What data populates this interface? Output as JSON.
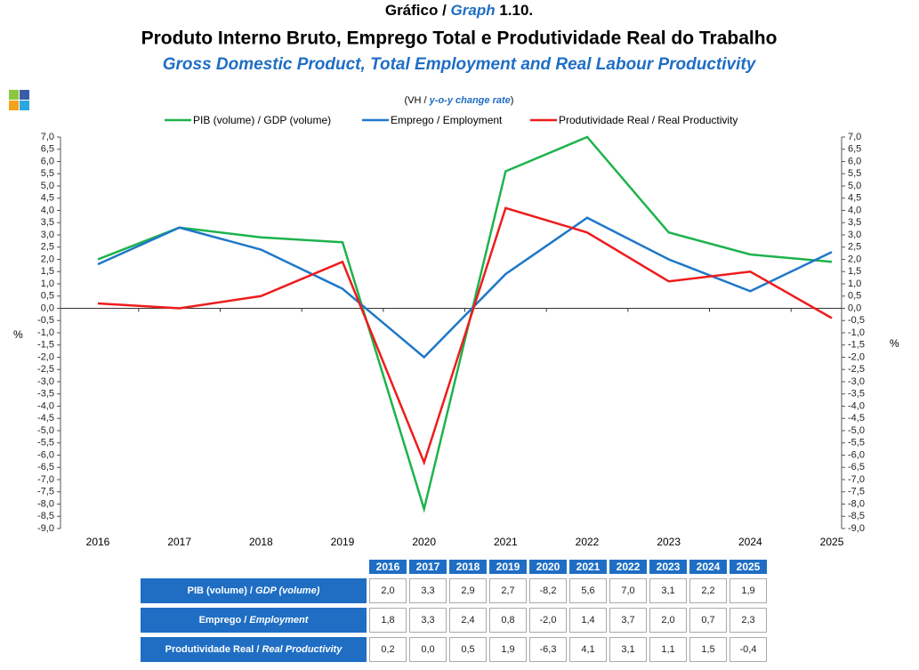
{
  "chart_data": {
    "type": "line",
    "title_pt": "Gráfico / ",
    "title_en": "Graph",
    "title_num": " 1.10.",
    "title": "Produto Interno Bruto, Emprego Total e Produtividade Real do Trabalho",
    "subtitle": "Gross Domestic Product, Total Employment and Real Labour Productivity",
    "unit_pt": "(VH / ",
    "unit_en": "y-o-y change rate",
    "unit_close": ")",
    "ylabel": "%",
    "y2label": "%",
    "categories": [
      "2016",
      "2017",
      "2018",
      "2019",
      "2020",
      "2021",
      "2022",
      "2023",
      "2024",
      "2025"
    ],
    "series": [
      {
        "name": "PIB (volume) / GDP (volume)",
        "color": "#1db34d",
        "values": [
          2.0,
          3.3,
          2.9,
          2.7,
          -8.2,
          5.6,
          7.0,
          3.1,
          2.2,
          1.9
        ]
      },
      {
        "name": "Emprego / Employment",
        "color": "#1f78c8",
        "values": [
          1.8,
          3.3,
          2.4,
          0.8,
          -2.0,
          1.4,
          3.7,
          2.0,
          0.7,
          2.3
        ]
      },
      {
        "name": "Produtividade Real / Real Productivity",
        "color": "#ee1c1c",
        "values": [
          0.2,
          0.0,
          0.5,
          1.9,
          -6.3,
          4.1,
          3.1,
          1.1,
          1.5,
          -0.4
        ]
      }
    ],
    "ylim": [
      -9,
      7
    ],
    "yticks": [
      {
        "value": -9,
        "label": "-9,0"
      },
      {
        "value": -8.5,
        "label": "-8,5"
      },
      {
        "value": -8,
        "label": "-8,0"
      },
      {
        "value": -7.5,
        "label": "-7,5"
      },
      {
        "value": -7,
        "label": "-7,0"
      },
      {
        "value": -6.5,
        "label": "-6,5"
      },
      {
        "value": -6,
        "label": "-6,0"
      },
      {
        "value": -5.5,
        "label": "-5,5"
      },
      {
        "value": -5,
        "label": "-5,0"
      },
      {
        "value": -4.5,
        "label": "-4,5"
      },
      {
        "value": -4,
        "label": "-4,0"
      },
      {
        "value": -3.5,
        "label": "-3,5"
      },
      {
        "value": -3,
        "label": "-3,0"
      },
      {
        "value": -2.5,
        "label": "-2,5"
      },
      {
        "value": -2,
        "label": "-2,0"
      },
      {
        "value": -1.5,
        "label": "-1,5"
      },
      {
        "value": -1,
        "label": "-1,0"
      },
      {
        "value": -0.5,
        "label": "-0,5"
      },
      {
        "value": 0,
        "label": "0,0"
      },
      {
        "value": 0.5,
        "label": "0,5"
      },
      {
        "value": 1,
        "label": "1,0"
      },
      {
        "value": 1.5,
        "label": "1,5"
      },
      {
        "value": 2,
        "label": "2,0"
      },
      {
        "value": 2.5,
        "label": "2,5"
      },
      {
        "value": 3,
        "label": "3,0"
      },
      {
        "value": 3.5,
        "label": "3,5"
      },
      {
        "value": 4,
        "label": "4,0"
      },
      {
        "value": 4.5,
        "label": "4,5"
      },
      {
        "value": 5,
        "label": "5,0"
      },
      {
        "value": 5.5,
        "label": "5,5"
      },
      {
        "value": 6,
        "label": "6,0"
      },
      {
        "value": 6.5,
        "label": "6,5"
      },
      {
        "value": 7,
        "label": "7,0"
      }
    ],
    "y2lim": [
      -9,
      7
    ],
    "y2ticks": [
      {
        "value": -9,
        "label": "-9,0"
      },
      {
        "value": -8.5,
        "label": "-8,5"
      },
      {
        "value": -8,
        "label": "-8,0"
      },
      {
        "value": -7.5,
        "label": "-7,5"
      },
      {
        "value": -7,
        "label": "-7,0"
      },
      {
        "value": -6.5,
        "label": "-6,5"
      },
      {
        "value": -6,
        "label": "-6,0"
      },
      {
        "value": -5.5,
        "label": "-5,5"
      },
      {
        "value": -5,
        "label": "-5,0"
      },
      {
        "value": -4.5,
        "label": "-4,5"
      },
      {
        "value": -4,
        "label": "-4,0"
      },
      {
        "value": -3.5,
        "label": "-3,5"
      },
      {
        "value": -3,
        "label": "-3,0"
      },
      {
        "value": -2.5,
        "label": "-2,5"
      },
      {
        "value": -2,
        "label": "-2,0"
      },
      {
        "value": -1.5,
        "label": "-1,5"
      },
      {
        "value": -1,
        "label": "-1,0"
      },
      {
        "value": -0.5,
        "label": "-0,5"
      },
      {
        "value": 0,
        "label": "0,0"
      },
      {
        "value": 0.5,
        "label": "0,5"
      },
      {
        "value": 1,
        "label": "1,0"
      },
      {
        "value": 1.5,
        "label": "1,5"
      },
      {
        "value": 2,
        "label": "2,0"
      },
      {
        "value": 2.5,
        "label": "2,5"
      },
      {
        "value": 3,
        "label": "3,0"
      },
      {
        "value": 3.5,
        "label": "3,5"
      },
      {
        "value": 4,
        "label": "4,0"
      },
      {
        "value": 4.5,
        "label": "4,5"
      },
      {
        "value": 5,
        "label": "5,0"
      },
      {
        "value": 5.5,
        "label": "5,5"
      },
      {
        "value": 6,
        "label": "6,0"
      },
      {
        "value": 6.5,
        "label": "6,5"
      },
      {
        "value": 7,
        "label": "7,0"
      }
    ],
    "grid": false,
    "legend": "top"
  },
  "table": {
    "columns": [
      "2016",
      "2017",
      "2018",
      "2019",
      "2020",
      "2021",
      "2022",
      "2023",
      "2024",
      "2025"
    ],
    "rows": [
      {
        "label": "PIB (volume) / ",
        "label_en": "GDP (volume)",
        "cells": [
          "2,0",
          "3,3",
          "2,9",
          "2,7",
          "-8,2",
          "5,6",
          "7,0",
          "3,1",
          "2,2",
          "1,9"
        ]
      },
      {
        "label": "Emprego / ",
        "label_en": "Employment",
        "cells": [
          "1,8",
          "3,3",
          "2,4",
          "0,8",
          "-2,0",
          "1,4",
          "3,7",
          "2,0",
          "0,7",
          "2,3"
        ]
      },
      {
        "label": "Produtividade Real / ",
        "label_en": "Real Productivity",
        "cells": [
          "0,2",
          "0,0",
          "0,5",
          "1,9",
          "-6,3",
          "4,1",
          "3,1",
          "1,1",
          "1,5",
          "-0,4"
        ]
      }
    ]
  }
}
